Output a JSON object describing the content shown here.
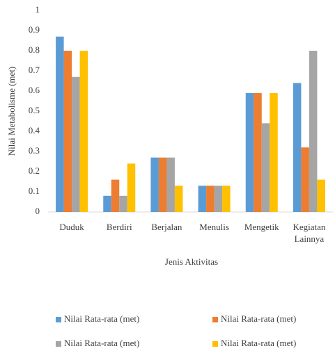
{
  "chart_data": {
    "type": "bar",
    "x_label": "Jenis Aktivitas",
    "y_label": "Nilai Metabolisme (met)",
    "categories": [
      "Duduk",
      "Berdiri",
      "Berjalan",
      "Menulis",
      "Mengetik",
      "Kegiatan Lainnya"
    ],
    "series": [
      {
        "name": "Nilai Rata-rata (met)",
        "color": "#5b9bd5",
        "values": [
          0.87,
          0.08,
          0.27,
          0.13,
          0.59,
          0.64
        ]
      },
      {
        "name": "Nilai Rata-rata (met)",
        "color": "#ed7d31",
        "values": [
          0.8,
          0.16,
          0.27,
          0.13,
          0.59,
          0.32
        ]
      },
      {
        "name": "Nilai Rata-rata (met)",
        "color": "#a5a5a5",
        "values": [
          0.67,
          0.08,
          0.27,
          0.13,
          0.44,
          0.8
        ]
      },
      {
        "name": "Nilai Rata-rata (met)",
        "color": "#ffc000",
        "values": [
          0.8,
          0.24,
          0.13,
          0.13,
          0.59,
          0.16
        ]
      }
    ],
    "ylim": [
      0,
      1
    ],
    "yticks": [
      0,
      0.1,
      0.2,
      0.3,
      0.4,
      0.5,
      0.6,
      0.7,
      0.8,
      0.9,
      1
    ],
    "grid": false,
    "legend": "bottom"
  }
}
